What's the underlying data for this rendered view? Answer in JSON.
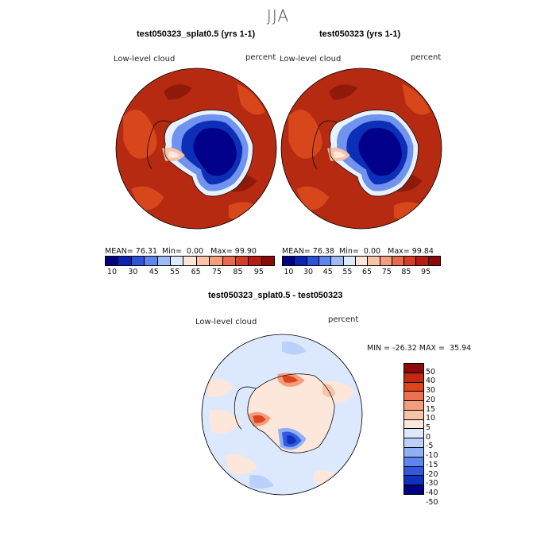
{
  "season": "JJA",
  "colors": {
    "abs_scale": [
      "#000080",
      "#0a23b5",
      "#2f52d9",
      "#5f86ec",
      "#9fbaf5",
      "#dce9ff",
      "#fde6d9",
      "#f9c3a7",
      "#f39f7d",
      "#e8694f",
      "#d43d26",
      "#b51d14",
      "#8a0a0a"
    ],
    "diff_scale": [
      "#000080",
      "#1030c0",
      "#3358e0",
      "#5d85ee",
      "#8fb0f5",
      "#bad1fb",
      "#dce8fd",
      "#fde7da",
      "#f8c4a9",
      "#f49d7d",
      "#ed7150",
      "#e0441f",
      "#c22812",
      "#8c0a0a"
    ]
  },
  "panels": [
    {
      "title": "test050323_splat0.5 (yrs 1-1)",
      "variable": "Low-level cloud",
      "units": "percent",
      "stats": {
        "mean": "76.31",
        "min": "0.00",
        "max": "99.90"
      },
      "colorbar_ticks": [
        "10",
        "30",
        "45",
        "55",
        "65",
        "75",
        "85",
        "95"
      ]
    },
    {
      "title": "test050323 (yrs 1-1)",
      "variable": "Low-level cloud",
      "units": "percent",
      "stats": {
        "mean": "76.38",
        "min": "0.00",
        "max": "99.84"
      },
      "colorbar_ticks": [
        "10",
        "30",
        "45",
        "55",
        "65",
        "75",
        "85",
        "95"
      ]
    }
  ],
  "diff": {
    "title": "test050323_splat0.5 - test050323",
    "variable": "Low-level cloud",
    "units": "percent",
    "stats": {
      "min": "-26.32",
      "max": "35.94"
    },
    "colorbar_ticks": [
      "50",
      "40",
      "30",
      "20",
      "15",
      "10",
      "5",
      "0",
      "-5",
      "-10",
      "-15",
      "-20",
      "-30",
      "-40",
      "-50"
    ]
  },
  "labels": {
    "mean_label": "MEAN=",
    "min_label": "Min=",
    "max_label": "Max=",
    "diff_min_label": "MIN =",
    "diff_max_label": "MAX ="
  }
}
